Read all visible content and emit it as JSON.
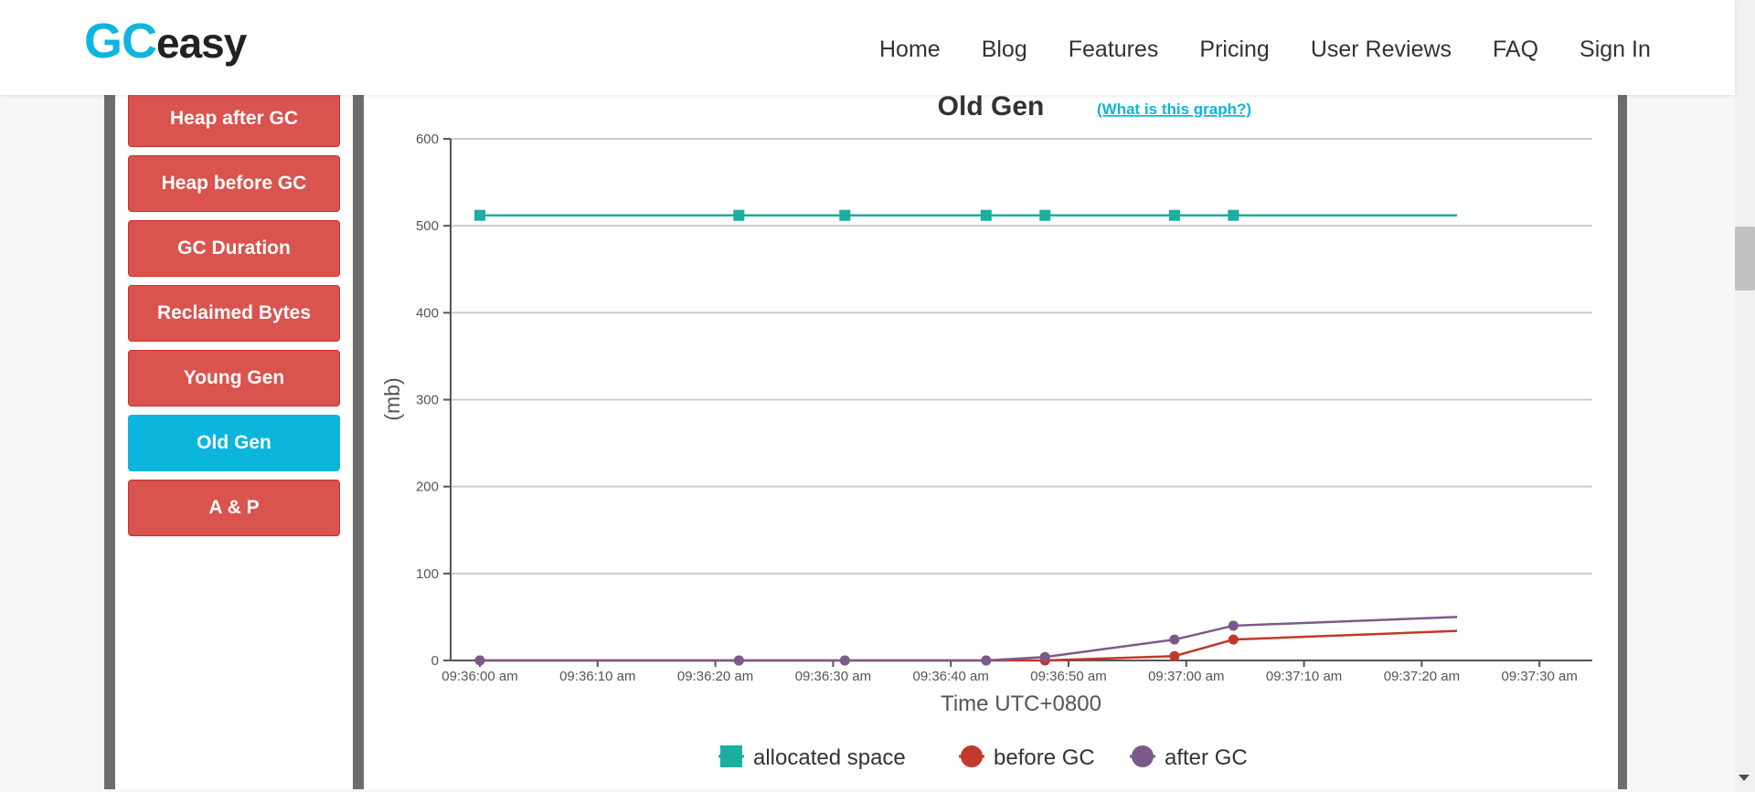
{
  "header": {
    "logo_gc": "GC",
    "logo_easy": "easy",
    "nav": [
      "Home",
      "Blog",
      "Features",
      "Pricing",
      "User Reviews",
      "FAQ",
      "Sign In"
    ]
  },
  "sidebar": {
    "buttons": [
      {
        "label": "Heap after GC",
        "active": false
      },
      {
        "label": "Heap before GC",
        "active": false
      },
      {
        "label": "GC Duration",
        "active": false
      },
      {
        "label": "Reclaimed Bytes",
        "active": false
      },
      {
        "label": "Young Gen",
        "active": false
      },
      {
        "label": "Old Gen",
        "active": true
      },
      {
        "label": "A & P",
        "active": false
      }
    ]
  },
  "chart": {
    "help_link": "(What is this graph?)"
  },
  "colors": {
    "allocated": "#1aaf9f",
    "before": "#c0392b",
    "after": "#7b5a8a",
    "button": "#d9534f",
    "active_button": "#0bb5dc"
  },
  "chart_data": {
    "type": "line",
    "title": "Old Gen",
    "xlabel": "Time UTC+0800",
    "ylabel": "(mb)",
    "ylim": [
      0,
      600
    ],
    "yticks": [
      0,
      100,
      200,
      300,
      400,
      500,
      600
    ],
    "xlim_seconds": [
      0,
      95
    ],
    "xticks": [
      {
        "t": 0,
        "label": "09:36:00 am"
      },
      {
        "t": 10,
        "label": "09:36:10 am"
      },
      {
        "t": 20,
        "label": "09:36:20 am"
      },
      {
        "t": 30,
        "label": "09:36:30 am"
      },
      {
        "t": 40,
        "label": "09:36:40 am"
      },
      {
        "t": 50,
        "label": "09:36:50 am"
      },
      {
        "t": 60,
        "label": "09:37:00 am"
      },
      {
        "t": 70,
        "label": "09:37:10 am"
      },
      {
        "t": 80,
        "label": "09:37:20 am"
      },
      {
        "t": 90,
        "label": "09:37:30 am"
      }
    ],
    "series": [
      {
        "name": "allocated space",
        "marker": "square",
        "points": [
          [
            0,
            512
          ],
          [
            22,
            512
          ],
          [
            31,
            512
          ],
          [
            43,
            512
          ],
          [
            48,
            512
          ],
          [
            59,
            512
          ],
          [
            64,
            512
          ]
        ],
        "end": [
          83,
          512
        ]
      },
      {
        "name": "before GC",
        "marker": "circle",
        "points": [
          [
            0,
            0
          ],
          [
            22,
            0
          ],
          [
            31,
            0
          ],
          [
            43,
            0
          ],
          [
            48,
            0
          ],
          [
            59,
            5
          ],
          [
            64,
            24
          ]
        ],
        "end": [
          83,
          34
        ]
      },
      {
        "name": "after GC",
        "marker": "circle",
        "points": [
          [
            0,
            0
          ],
          [
            22,
            0
          ],
          [
            31,
            0
          ],
          [
            43,
            0
          ],
          [
            48,
            4
          ],
          [
            59,
            24
          ],
          [
            64,
            40
          ]
        ],
        "end": [
          83,
          50
        ]
      }
    ]
  }
}
